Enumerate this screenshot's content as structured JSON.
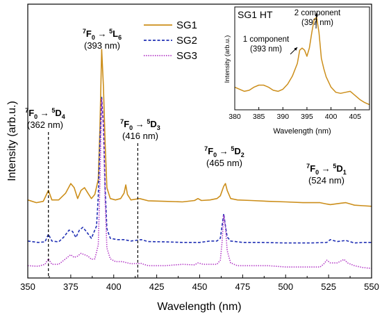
{
  "chart_data": {
    "type": "line",
    "xlabel": "Wavelength (nm)",
    "ylabel": "Intensity (arb.u.)",
    "xlim": [
      350,
      550
    ],
    "xticks": [
      350,
      375,
      400,
      425,
      450,
      475,
      500,
      525,
      550
    ],
    "legend_position": "top-center",
    "series": [
      {
        "name": "SG1",
        "color": "#cc8e1a",
        "dash": "solid",
        "points": [
          [
            350,
            0.285
          ],
          [
            355,
            0.275
          ],
          [
            359,
            0.28
          ],
          [
            362,
            0.32
          ],
          [
            364,
            0.285
          ],
          [
            368,
            0.285
          ],
          [
            372,
            0.31
          ],
          [
            375,
            0.345
          ],
          [
            377,
            0.33
          ],
          [
            379,
            0.29
          ],
          [
            381,
            0.32
          ],
          [
            383,
            0.33
          ],
          [
            385,
            0.31
          ],
          [
            387,
            0.29
          ],
          [
            389,
            0.305
          ],
          [
            391,
            0.36
          ],
          [
            392,
            0.55
          ],
          [
            393,
            0.835
          ],
          [
            394,
            0.7
          ],
          [
            395,
            0.49
          ],
          [
            396,
            0.33
          ],
          [
            398,
            0.29
          ],
          [
            401,
            0.285
          ],
          [
            404,
            0.29
          ],
          [
            406,
            0.31
          ],
          [
            407,
            0.34
          ],
          [
            408,
            0.305
          ],
          [
            410,
            0.285
          ],
          [
            415,
            0.29
          ],
          [
            420,
            0.282
          ],
          [
            430,
            0.28
          ],
          [
            440,
            0.278
          ],
          [
            447,
            0.283
          ],
          [
            449,
            0.29
          ],
          [
            451,
            0.283
          ],
          [
            456,
            0.285
          ],
          [
            460,
            0.29
          ],
          [
            462,
            0.3
          ],
          [
            464,
            0.335
          ],
          [
            465,
            0.345
          ],
          [
            466,
            0.32
          ],
          [
            468,
            0.29
          ],
          [
            472,
            0.285
          ],
          [
            480,
            0.283
          ],
          [
            490,
            0.28
          ],
          [
            500,
            0.278
          ],
          [
            510,
            0.275
          ],
          [
            520,
            0.275
          ],
          [
            524,
            0.27
          ],
          [
            526,
            0.268
          ],
          [
            532,
            0.273
          ],
          [
            535,
            0.275
          ],
          [
            540,
            0.266
          ],
          [
            545,
            0.264
          ],
          [
            550,
            0.262
          ]
        ]
      },
      {
        "name": "SG2",
        "color": "#1f2fb4",
        "dash": "dashed",
        "points": [
          [
            350,
            0.135
          ],
          [
            356,
            0.13
          ],
          [
            360,
            0.132
          ],
          [
            362,
            0.16
          ],
          [
            364,
            0.135
          ],
          [
            368,
            0.132
          ],
          [
            371,
            0.15
          ],
          [
            374,
            0.175
          ],
          [
            376,
            0.17
          ],
          [
            378,
            0.148
          ],
          [
            380,
            0.175
          ],
          [
            382,
            0.185
          ],
          [
            384,
            0.17
          ],
          [
            387,
            0.145
          ],
          [
            390,
            0.19
          ],
          [
            391,
            0.3
          ],
          [
            392,
            0.5
          ],
          [
            393,
            0.66
          ],
          [
            394,
            0.56
          ],
          [
            395,
            0.33
          ],
          [
            396,
            0.18
          ],
          [
            398,
            0.145
          ],
          [
            402,
            0.14
          ],
          [
            406,
            0.14
          ],
          [
            410,
            0.135
          ],
          [
            416,
            0.14
          ],
          [
            420,
            0.133
          ],
          [
            430,
            0.132
          ],
          [
            440,
            0.13
          ],
          [
            450,
            0.13
          ],
          [
            456,
            0.135
          ],
          [
            460,
            0.135
          ],
          [
            462,
            0.145
          ],
          [
            463,
            0.19
          ],
          [
            464,
            0.235
          ],
          [
            465,
            0.19
          ],
          [
            466,
            0.15
          ],
          [
            468,
            0.135
          ],
          [
            475,
            0.13
          ],
          [
            485,
            0.13
          ],
          [
            500,
            0.128
          ],
          [
            515,
            0.128
          ],
          [
            524,
            0.13
          ],
          [
            526,
            0.14
          ],
          [
            530,
            0.133
          ],
          [
            535,
            0.137
          ],
          [
            540,
            0.128
          ],
          [
            545,
            0.13
          ],
          [
            550,
            0.13
          ]
        ]
      },
      {
        "name": "SG3",
        "color": "#b032c4",
        "dash": "dotted",
        "points": [
          [
            350,
            0.045
          ],
          [
            356,
            0.043
          ],
          [
            360,
            0.05
          ],
          [
            362,
            0.07
          ],
          [
            364,
            0.05
          ],
          [
            368,
            0.05
          ],
          [
            372,
            0.07
          ],
          [
            375,
            0.085
          ],
          [
            377,
            0.075
          ],
          [
            379,
            0.08
          ],
          [
            381,
            0.09
          ],
          [
            383,
            0.085
          ],
          [
            385,
            0.08
          ],
          [
            387,
            0.068
          ],
          [
            389,
            0.07
          ],
          [
            391,
            0.12
          ],
          [
            392,
            0.35
          ],
          [
            393,
            0.655
          ],
          [
            394,
            0.55
          ],
          [
            395,
            0.28
          ],
          [
            396,
            0.11
          ],
          [
            398,
            0.07
          ],
          [
            401,
            0.06
          ],
          [
            405,
            0.06
          ],
          [
            410,
            0.052
          ],
          [
            416,
            0.053
          ],
          [
            420,
            0.045
          ],
          [
            430,
            0.045
          ],
          [
            440,
            0.05
          ],
          [
            447,
            0.048
          ],
          [
            449,
            0.055
          ],
          [
            452,
            0.05
          ],
          [
            456,
            0.05
          ],
          [
            460,
            0.05
          ],
          [
            462,
            0.065
          ],
          [
            463,
            0.13
          ],
          [
            464,
            0.23
          ],
          [
            465,
            0.185
          ],
          [
            466,
            0.1
          ],
          [
            468,
            0.055
          ],
          [
            472,
            0.045
          ],
          [
            480,
            0.045
          ],
          [
            490,
            0.045
          ],
          [
            500,
            0.04
          ],
          [
            510,
            0.04
          ],
          [
            520,
            0.04
          ],
          [
            522,
            0.05
          ],
          [
            524,
            0.065
          ],
          [
            526,
            0.055
          ],
          [
            530,
            0.055
          ],
          [
            534,
            0.068
          ],
          [
            536,
            0.055
          ],
          [
            540,
            0.045
          ],
          [
            545,
            0.038
          ],
          [
            550,
            0.035
          ]
        ]
      }
    ],
    "annotations": [
      {
        "transition_lhs": "7F0",
        "transition_rhs": "5D4",
        "sub": "(362 nm)",
        "x": 362,
        "vline": true
      },
      {
        "transition_lhs": "7F0",
        "transition_rhs": "5L6",
        "sub": "(393 nm)",
        "x": 393,
        "vline": false
      },
      {
        "transition_lhs": "7F0",
        "transition_rhs": "5D3",
        "sub": "(416 nm)",
        "x": 414,
        "vline": true
      },
      {
        "transition_lhs": "7F0",
        "transition_rhs": "5D2",
        "sub": "(465 nm)",
        "x": 465,
        "vline": false
      },
      {
        "transition_lhs": "7F0",
        "transition_rhs": "5D1",
        "sub": "(524 nm)",
        "x": 524,
        "vline": false
      }
    ],
    "inset": {
      "title": "SG1 HT",
      "xlabel": "Wavelength (nm)",
      "ylabel": "Intensity (arb.u.)",
      "xlim": [
        380,
        408
      ],
      "xticks": [
        380,
        385,
        390,
        395,
        400,
        405
      ],
      "color": "#cc8e1a",
      "points": [
        [
          380,
          0.22
        ],
        [
          381,
          0.2
        ],
        [
          382,
          0.18
        ],
        [
          383,
          0.19
        ],
        [
          384,
          0.22
        ],
        [
          385,
          0.24
        ],
        [
          386,
          0.24
        ],
        [
          387,
          0.22
        ],
        [
          388,
          0.19
        ],
        [
          389,
          0.18
        ],
        [
          390,
          0.2
        ],
        [
          391,
          0.25
        ],
        [
          392,
          0.33
        ],
        [
          393,
          0.45
        ],
        [
          393.5,
          0.58
        ],
        [
          394,
          0.6
        ],
        [
          394.5,
          0.58
        ],
        [
          395,
          0.52
        ],
        [
          395.5,
          0.6
        ],
        [
          396,
          0.75
        ],
        [
          396.5,
          0.88
        ],
        [
          397,
          0.9
        ],
        [
          397.5,
          0.75
        ],
        [
          398,
          0.5
        ],
        [
          398.5,
          0.4
        ],
        [
          399,
          0.32
        ],
        [
          400,
          0.22
        ],
        [
          401,
          0.17
        ],
        [
          402,
          0.16
        ],
        [
          403,
          0.17
        ],
        [
          404,
          0.18
        ],
        [
          405,
          0.14
        ],
        [
          406,
          0.1
        ],
        [
          407,
          0.07
        ],
        [
          408,
          0.05
        ]
      ],
      "labels": [
        {
          "text": [
            "1 component",
            "(393 nm)"
          ],
          "x": 393
        },
        {
          "text": [
            "2 component",
            "(397 nm)"
          ],
          "x": 397
        }
      ]
    }
  }
}
